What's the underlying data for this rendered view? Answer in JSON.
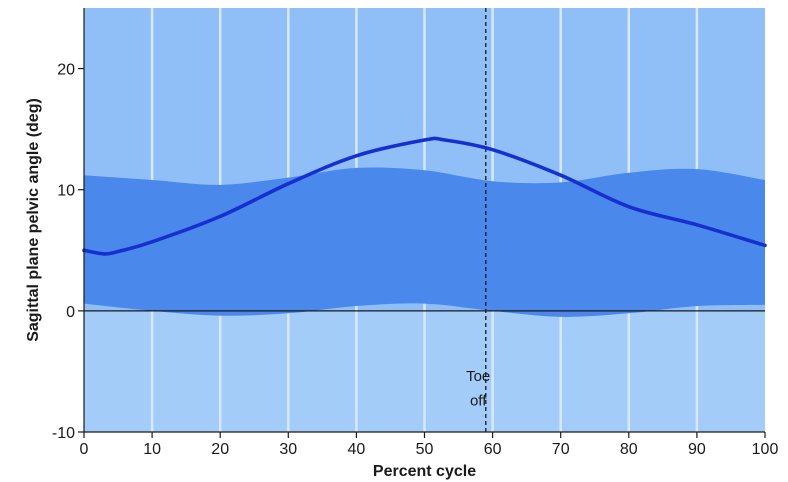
{
  "chart_data": {
    "type": "line",
    "title": "",
    "xlabel": "Percent cycle",
    "ylabel": "Sagittal plane pelvic angle (deg)",
    "xlim": [
      0,
      100
    ],
    "ylim": [
      -10,
      25
    ],
    "x_ticks": [
      0,
      10,
      20,
      30,
      40,
      50,
      60,
      70,
      80,
      90,
      100
    ],
    "y_ticks": [
      -10,
      0,
      10,
      20
    ],
    "x_tick_labels": [
      "0",
      "10",
      "20",
      "30",
      "40",
      "50",
      "60",
      "70",
      "80",
      "90",
      "100"
    ],
    "y_tick_labels": [
      "-10",
      "0",
      "10",
      "20"
    ],
    "grid": "vertical",
    "series": [
      {
        "x": [
          0,
          3,
          5,
          10,
          20,
          30,
          40,
          50,
          53,
          60,
          70,
          80,
          90,
          100
        ],
        "y": [
          5.0,
          4.7,
          4.9,
          5.7,
          7.8,
          10.5,
          12.8,
          14.1,
          14.1,
          13.3,
          11.2,
          8.6,
          7.1,
          5.4
        ],
        "color": "#1630d0"
      }
    ],
    "bands": [
      {
        "x": [
          0,
          10,
          20,
          30,
          40,
          50,
          60,
          70,
          80,
          90,
          100
        ],
        "upper": [
          11.2,
          10.8,
          10.4,
          11.0,
          11.8,
          11.6,
          10.7,
          10.6,
          11.4,
          11.7,
          10.8
        ],
        "lower": [
          0.6,
          0.0,
          -0.4,
          -0.2,
          0.4,
          0.6,
          0.0,
          -0.5,
          -0.2,
          0.4,
          0.5
        ],
        "color": "#4a88ec"
      }
    ],
    "reference_lines": [
      {
        "axis": "x",
        "value": 59,
        "style": "dashed",
        "color": "#1a1a1a"
      }
    ],
    "annotations": [
      {
        "text": "Toe",
        "x": 57,
        "y": -5.8
      },
      {
        "text": "off",
        "x": 57,
        "y": -7.8
      }
    ],
    "colors": {
      "background": "#90bff7",
      "lower_background": "#a3ccf9",
      "grid": "#d8e8fb",
      "zero_line": "#1a1a1a"
    }
  }
}
